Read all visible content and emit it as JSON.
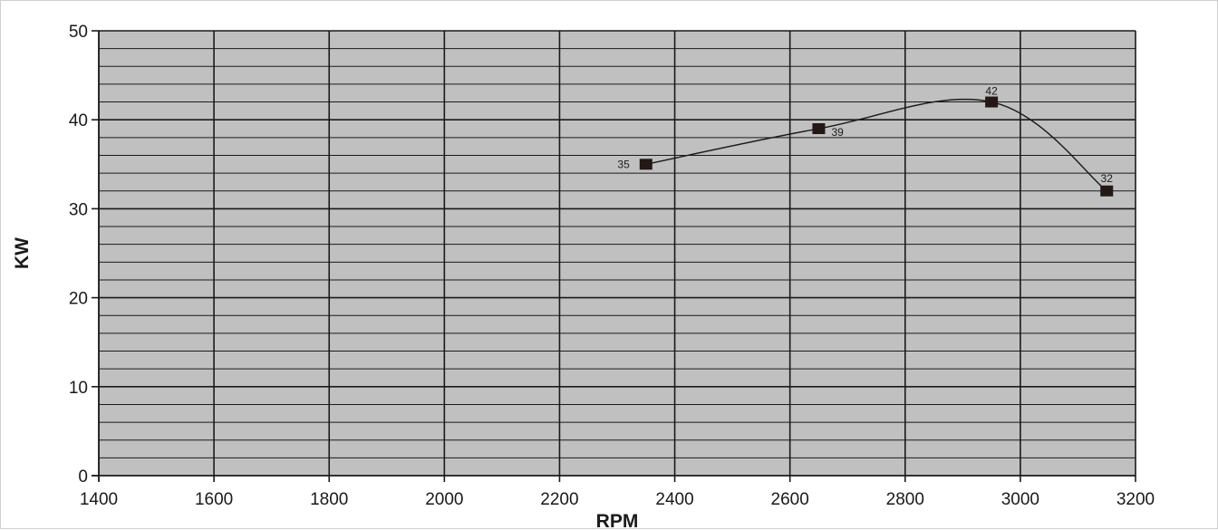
{
  "chart_data": {
    "type": "line",
    "title": "",
    "xlabel": "RPM",
    "ylabel": "KW",
    "xlim": [
      1400,
      3200
    ],
    "ylim": [
      0,
      50
    ],
    "x_ticks": [
      "1400",
      "1600",
      "1800",
      "2000",
      "2200",
      "2400",
      "2600",
      "2800",
      "3000",
      "3200"
    ],
    "y_ticks": [
      "0",
      "10",
      "20",
      "30",
      "40",
      "50"
    ],
    "grid": true,
    "legend": "none",
    "series": [
      {
        "x": [
          2350,
          2650,
          2950,
          3150
        ],
        "values": [
          35,
          39,
          42,
          32
        ],
        "labels": [
          "35",
          "39",
          "42",
          "32"
        ]
      }
    ],
    "colors": {
      "plot_background": "#c0c0c0",
      "grid": "#1a1a1a",
      "line": "#1a1a1a",
      "marker": "#231815"
    }
  }
}
